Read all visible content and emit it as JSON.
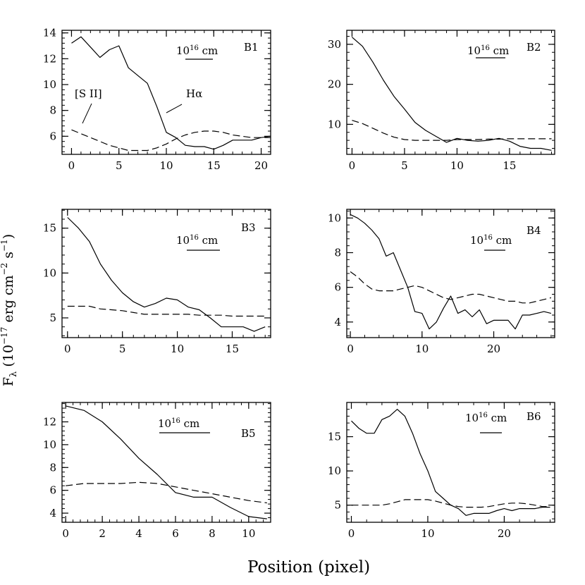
{
  "figure": {
    "xlabel": "Position (pixel)",
    "ylabel": "F",
    "ylabel_sub": "λ",
    "ylabel_rest": " (10",
    "ylabel_exp1": "−17",
    "ylabel_mid": " erg cm",
    "ylabel_exp2": "−2",
    "ylabel_s": " s",
    "ylabel_exp3": "−1",
    "ylabel_end": ")",
    "line_color": "#000000"
  },
  "chart_data": [
    {
      "type": "line",
      "title": "B1",
      "xlim": [
        -1,
        21
      ],
      "ylim": [
        4.6,
        14.2
      ],
      "xticks": [
        0,
        5,
        10,
        15,
        20
      ],
      "yticks": [
        6,
        8,
        10,
        12,
        14
      ],
      "scale_bar": {
        "text": "10",
        "exp": "16",
        "unit": " cm"
      },
      "annotations": [
        {
          "text": "[S II]"
        },
        {
          "text": "Hα"
        }
      ],
      "series": [
        {
          "name": "Hα",
          "style": "solid",
          "x": [
            0,
            1,
            2,
            3,
            4,
            5,
            6,
            7,
            8,
            9,
            10,
            11,
            12,
            13,
            14,
            15,
            16,
            17,
            18,
            19,
            20,
            21
          ],
          "y": [
            13.2,
            13.7,
            12.9,
            12.1,
            12.7,
            13.0,
            11.3,
            10.7,
            10.1,
            8.3,
            6.3,
            5.9,
            5.3,
            5.2,
            5.2,
            5.0,
            5.3,
            5.7,
            5.7,
            5.7,
            5.9,
            6.0
          ]
        },
        {
          "name": "[S II]",
          "style": "dashed",
          "x": [
            0,
            1,
            2,
            3,
            4,
            5,
            6,
            7,
            8,
            9,
            10,
            11,
            12,
            13,
            14,
            15,
            16,
            17,
            18,
            19,
            20,
            21
          ],
          "y": [
            6.5,
            6.2,
            5.9,
            5.6,
            5.3,
            5.1,
            4.9,
            4.9,
            4.9,
            5.1,
            5.4,
            5.8,
            6.1,
            6.3,
            6.4,
            6.4,
            6.3,
            6.1,
            6.0,
            5.9,
            5.9,
            5.9
          ]
        }
      ]
    },
    {
      "type": "line",
      "title": "B2",
      "xlim": [
        -0.5,
        19.3
      ],
      "ylim": [
        2.5,
        33.5
      ],
      "xticks": [
        0,
        5,
        10,
        15
      ],
      "yticks": [
        10,
        20,
        30
      ],
      "scale_bar": {
        "text": "10",
        "exp": "16",
        "unit": " cm"
      },
      "series": [
        {
          "name": "Hα",
          "style": "solid",
          "x": [
            0,
            1,
            2,
            3,
            4,
            5,
            6,
            7,
            8,
            9,
            10,
            11,
            12,
            13,
            14,
            15,
            16,
            17,
            18,
            19
          ],
          "y": [
            31.8,
            29.5,
            25.5,
            21.0,
            17.0,
            13.8,
            10.5,
            8.5,
            7.0,
            5.5,
            6.5,
            6.0,
            5.8,
            6.0,
            6.5,
            5.8,
            4.5,
            4.0,
            4.0,
            3.5
          ]
        },
        {
          "name": "[S II]",
          "style": "dashed",
          "x": [
            0,
            1,
            2,
            3,
            4,
            5,
            6,
            7,
            8,
            9,
            10,
            11,
            12,
            13,
            14,
            15,
            16,
            17,
            18,
            19
          ],
          "y": [
            11.0,
            10.2,
            9.0,
            7.8,
            6.8,
            6.2,
            6.0,
            6.0,
            6.0,
            6.0,
            6.2,
            6.2,
            6.2,
            6.3,
            6.3,
            6.4,
            6.4,
            6.4,
            6.4,
            6.4
          ]
        }
      ]
    },
    {
      "type": "line",
      "title": "B3",
      "xlim": [
        -0.5,
        18.5
      ],
      "ylim": [
        2.8,
        17.1
      ],
      "xticks": [
        0,
        5,
        10,
        15
      ],
      "yticks": [
        5,
        10,
        15
      ],
      "scale_bar": {
        "text": "10",
        "exp": "16",
        "unit": " cm"
      },
      "series": [
        {
          "name": "Hα",
          "style": "solid",
          "x": [
            0,
            1,
            2,
            3,
            4,
            5,
            6,
            7,
            8,
            9,
            10,
            11,
            12,
            13,
            14,
            15,
            16,
            17,
            18
          ],
          "y": [
            16.2,
            15.0,
            13.5,
            11.0,
            9.2,
            7.8,
            6.8,
            6.2,
            6.6,
            7.2,
            7.0,
            6.2,
            5.9,
            5.0,
            4.0,
            4.0,
            4.0,
            3.5,
            4.0
          ]
        },
        {
          "name": "[S II]",
          "style": "dashed",
          "x": [
            0,
            1,
            2,
            3,
            4,
            5,
            6,
            7,
            8,
            9,
            10,
            11,
            12,
            13,
            14,
            15,
            16,
            17,
            18
          ],
          "y": [
            6.3,
            6.3,
            6.3,
            6.0,
            5.9,
            5.8,
            5.6,
            5.4,
            5.4,
            5.4,
            5.4,
            5.4,
            5.3,
            5.3,
            5.3,
            5.2,
            5.2,
            5.2,
            5.2
          ]
        }
      ]
    },
    {
      "type": "line",
      "title": "B4",
      "xlim": [
        -0.5,
        28.5
      ],
      "ylim": [
        3.1,
        10.5
      ],
      "xticks": [
        0,
        10,
        20
      ],
      "yticks": [
        4,
        6,
        8,
        10
      ],
      "scale_bar": {
        "text": "10",
        "exp": "16",
        "unit": " cm"
      },
      "series": [
        {
          "name": "Hα",
          "style": "solid",
          "x": [
            0,
            1,
            2,
            3,
            4,
            5,
            6,
            7,
            8,
            9,
            10,
            11,
            12,
            13,
            14,
            15,
            16,
            17,
            18,
            19,
            20,
            21,
            22,
            23,
            24,
            25,
            26,
            27,
            28
          ],
          "y": [
            10.2,
            10.0,
            9.7,
            9.3,
            8.8,
            7.8,
            8.0,
            7.0,
            6.0,
            4.6,
            4.5,
            3.6,
            4.0,
            4.8,
            5.5,
            4.5,
            4.7,
            4.3,
            4.7,
            3.9,
            4.1,
            4.1,
            4.1,
            3.6,
            4.4,
            4.4,
            4.5,
            4.6,
            4.5
          ]
        },
        {
          "name": "[S II]",
          "style": "dashed",
          "x": [
            0,
            1,
            2,
            3,
            4,
            5,
            6,
            7,
            8,
            9,
            10,
            11,
            12,
            13,
            14,
            15,
            16,
            17,
            18,
            19,
            20,
            21,
            22,
            23,
            24,
            25,
            26,
            27,
            28
          ],
          "y": [
            6.9,
            6.6,
            6.2,
            5.9,
            5.8,
            5.8,
            5.8,
            5.9,
            6.0,
            6.1,
            6.0,
            5.8,
            5.6,
            5.4,
            5.3,
            5.4,
            5.5,
            5.6,
            5.6,
            5.5,
            5.4,
            5.3,
            5.2,
            5.2,
            5.1,
            5.1,
            5.2,
            5.3,
            5.4
          ]
        }
      ]
    },
    {
      "type": "line",
      "title": "B5",
      "xlim": [
        -0.2,
        11.2
      ],
      "ylim": [
        3.2,
        13.7
      ],
      "xticks": [
        0,
        2,
        4,
        6,
        8,
        10
      ],
      "yticks": [
        4,
        6,
        8,
        10,
        12
      ],
      "scale_bar": {
        "text": "10",
        "exp": "16",
        "unit": " cm"
      },
      "series": [
        {
          "name": "Hα",
          "style": "solid",
          "x": [
            0,
            1,
            2,
            3,
            4,
            5,
            6,
            7,
            8,
            9,
            10,
            11
          ],
          "y": [
            13.4,
            13.0,
            12.0,
            10.5,
            8.8,
            7.4,
            5.8,
            5.4,
            5.4,
            4.5,
            3.7,
            3.5
          ]
        },
        {
          "name": "[S II]",
          "style": "dashed",
          "x": [
            0,
            1,
            2,
            3,
            4,
            5,
            6,
            7,
            8,
            9,
            10,
            11
          ],
          "y": [
            6.4,
            6.6,
            6.6,
            6.6,
            6.7,
            6.6,
            6.3,
            6.0,
            5.7,
            5.4,
            5.1,
            4.9
          ]
        }
      ]
    },
    {
      "type": "line",
      "title": "B6",
      "xlim": [
        -0.6,
        26.6
      ],
      "ylim": [
        2.5,
        20.0
      ],
      "xticks": [
        0,
        10,
        20
      ],
      "yticks": [
        5,
        10,
        15
      ],
      "scale_bar": {
        "text": "10",
        "exp": "16",
        "unit": " cm"
      },
      "series": [
        {
          "name": "Hα",
          "style": "solid",
          "x": [
            0,
            1,
            2,
            3,
            4,
            5,
            6,
            7,
            8,
            9,
            10,
            11,
            12,
            13,
            14,
            15,
            16,
            17,
            18,
            19,
            20,
            21,
            22,
            23,
            24,
            25,
            26
          ],
          "y": [
            17.3,
            16.2,
            15.5,
            15.5,
            17.5,
            18.0,
            19.0,
            18.0,
            15.5,
            12.5,
            10.0,
            7.0,
            6.0,
            5.0,
            4.5,
            3.5,
            3.8,
            3.8,
            3.8,
            4.2,
            4.5,
            4.2,
            4.5,
            4.5,
            4.5,
            4.7,
            4.7
          ]
        },
        {
          "name": "[S II]",
          "style": "dashed",
          "x": [
            0,
            1,
            2,
            3,
            4,
            5,
            6,
            7,
            8,
            9,
            10,
            11,
            12,
            13,
            14,
            15,
            16,
            17,
            18,
            19,
            20,
            21,
            22,
            23,
            24,
            25,
            26
          ],
          "y": [
            5.0,
            5.0,
            5.0,
            5.0,
            5.0,
            5.2,
            5.5,
            5.8,
            5.8,
            5.8,
            5.8,
            5.6,
            5.3,
            5.0,
            4.8,
            4.7,
            4.7,
            4.7,
            4.8,
            5.0,
            5.2,
            5.3,
            5.3,
            5.2,
            5.0,
            4.8,
            4.8
          ]
        }
      ]
    }
  ]
}
